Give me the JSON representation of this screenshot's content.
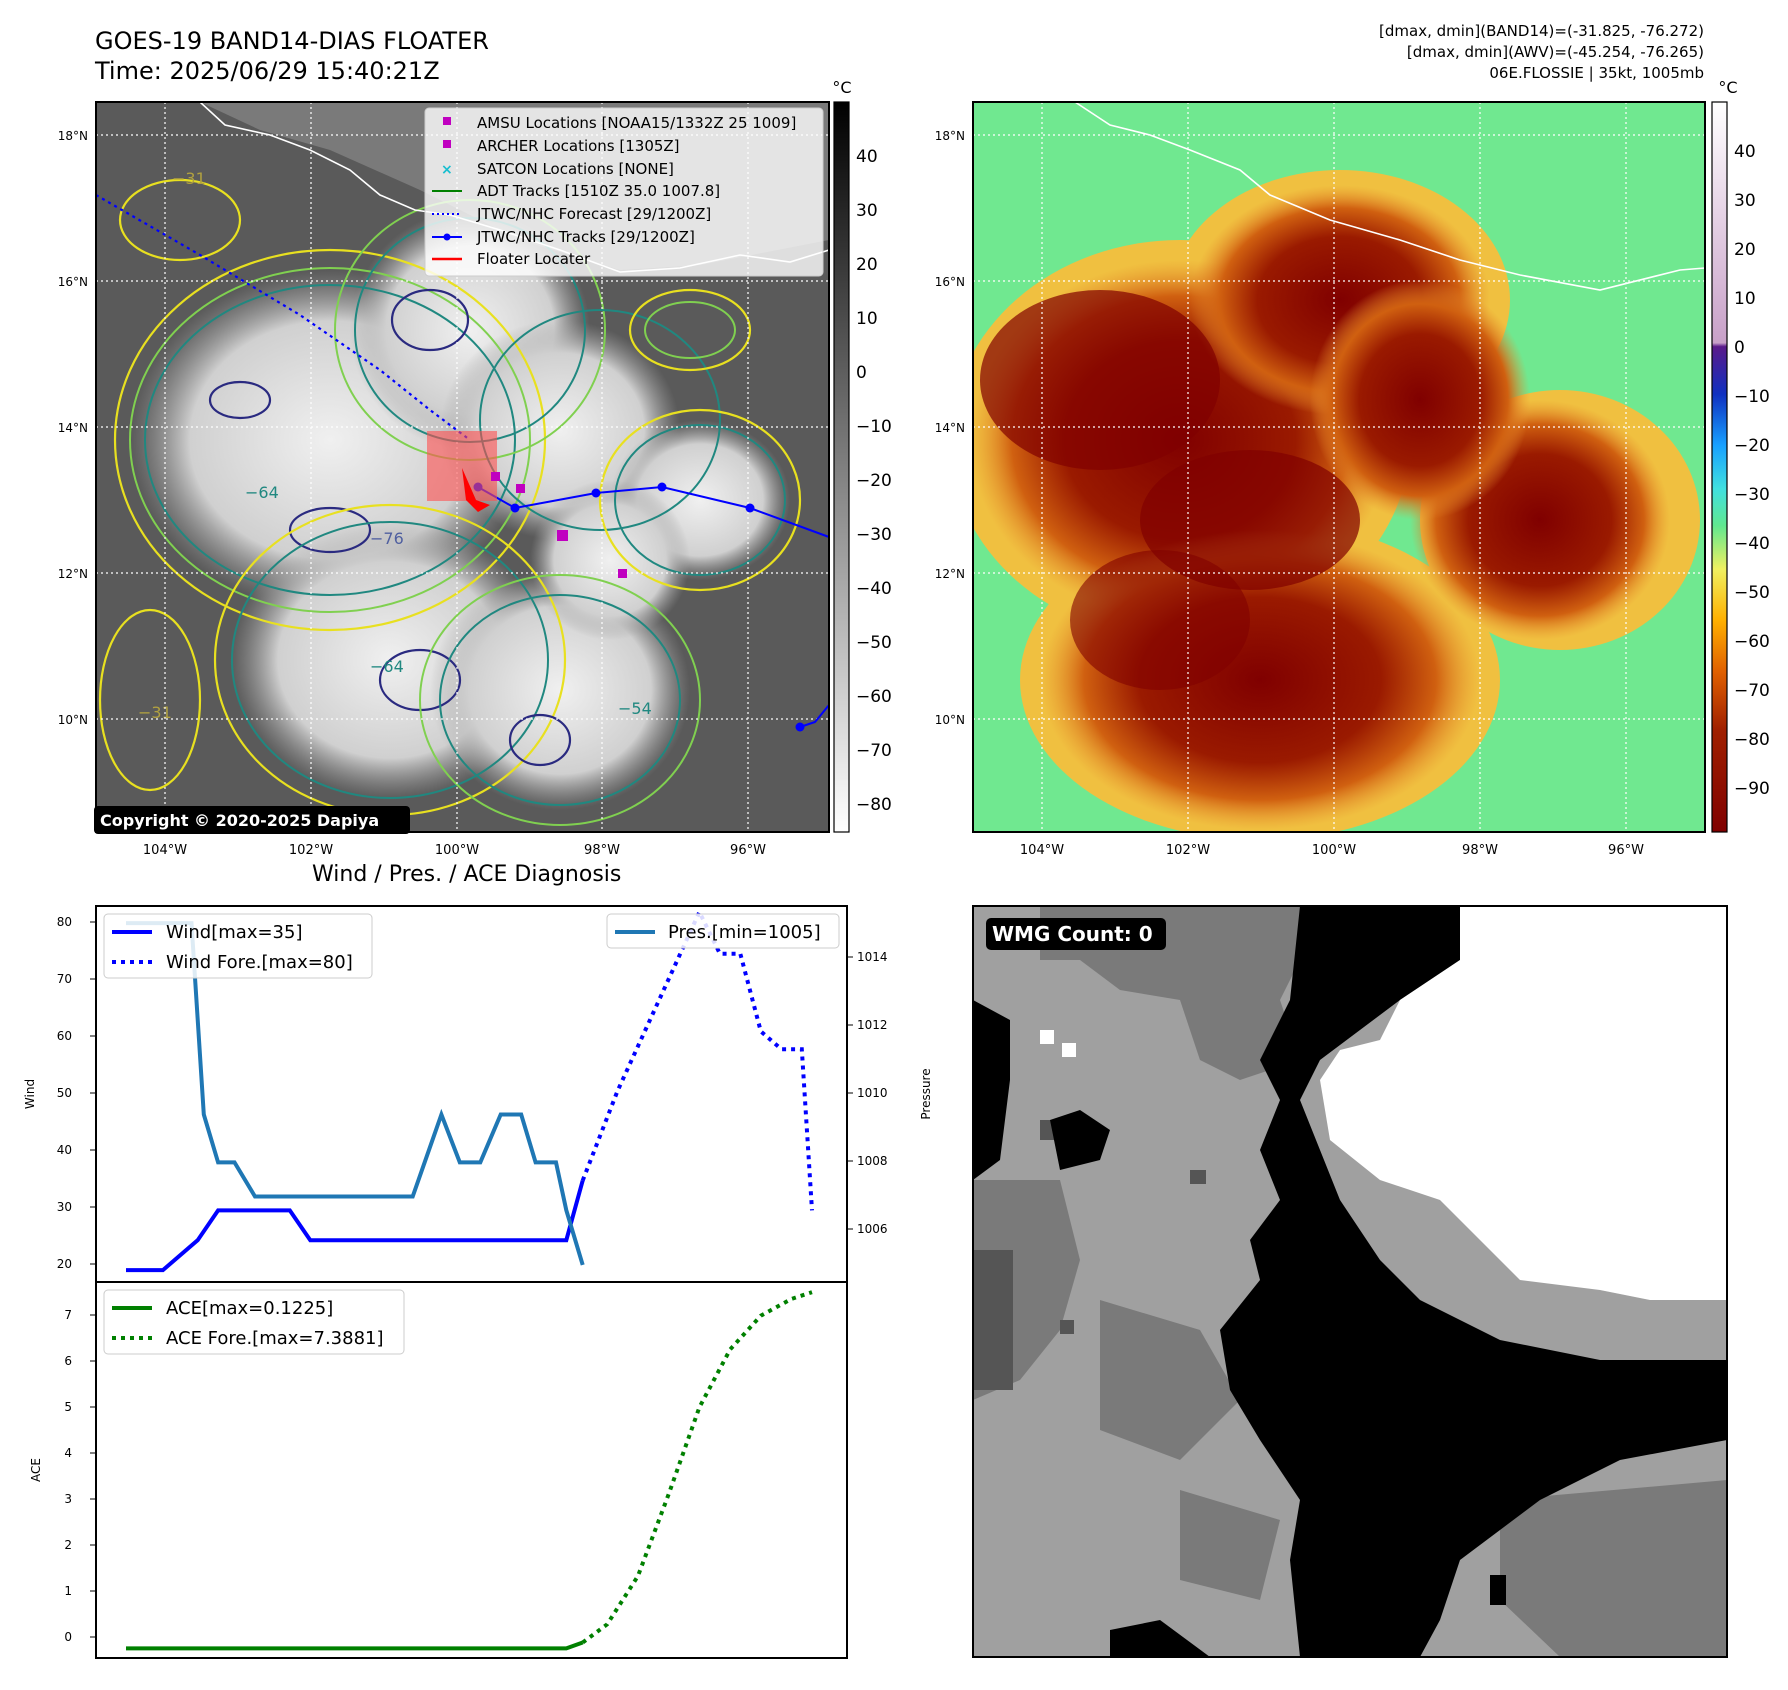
{
  "header": {
    "title_line1": "GOES-19 BAND14-DIAS FLOATER",
    "title_line2": "Time: 2025/06/29 15:40:21Z",
    "stat_band14": "[dmax, dmin](BAND14)=(-31.825, -76.272)",
    "stat_awv": "[dmax, dmin](AWV)=(-45.254, -76.265)",
    "storm_info": "06E.FLOSSIE | 35kt, 1005mb"
  },
  "map_axes": {
    "lat_labels": [
      "18°N",
      "16°N",
      "14°N",
      "12°N",
      "10°N"
    ],
    "lon_labels": [
      "104°W",
      "102°W",
      "100°W",
      "98°W",
      "96°W"
    ],
    "colorbar_unit": "°C",
    "colorbar_left_ticks": [
      "40",
      "30",
      "20",
      "10",
      "0",
      "−10",
      "−20",
      "−30",
      "−40",
      "−50",
      "−60",
      "−70",
      "−80"
    ],
    "colorbar_right_ticks": [
      "40",
      "30",
      "20",
      "10",
      "0",
      "−10",
      "−20",
      "−30",
      "−40",
      "−50",
      "−60",
      "−70",
      "−80",
      "−90"
    ],
    "contour_labels": [
      "−31",
      "−64",
      "−76",
      "−64",
      "−54",
      "−31"
    ]
  },
  "legend": [
    {
      "label": "AMSU Locations [NOAA15/1332Z 25 1009]",
      "symbol": "square",
      "color": "#c000c0"
    },
    {
      "label": "ARCHER Locations [1305Z]",
      "symbol": "square",
      "color": "#c000c0"
    },
    {
      "label": "SATCON Locations [NONE]",
      "symbol": "x",
      "color": "#17becf"
    },
    {
      "label": "ADT Tracks [1510Z 35.0 1007.8]",
      "symbol": "line",
      "color": "#008000"
    },
    {
      "label": "JTWC/NHC Forecast [29/1200Z]",
      "symbol": "dotted",
      "color": "#0000ff"
    },
    {
      "label": "JTWC/NHC Tracks [29/1200Z]",
      "symbol": "line-dot",
      "color": "#0000ff"
    },
    {
      "label": "Floater Locater",
      "symbol": "line",
      "color": "#ff0000"
    }
  ],
  "copyright": "Copyright © 2020-2025 Dapiya",
  "diagnosis": {
    "title": "Wind / Pres. / ACE Diagnosis",
    "wind_legend": "Wind[max=35]",
    "wind_fore_legend": "Wind Fore.[max=80]",
    "pres_legend": "Pres.[min=1005]",
    "ace_legend": "ACE[max=0.1225]",
    "ace_fore_legend": "ACE Fore.[max=7.3881]",
    "wind_ylabel": "Wind",
    "pres_ylabel": "Pressure",
    "ace_ylabel": "ACE",
    "wind_ticks": [
      "80",
      "70",
      "60",
      "50",
      "40",
      "30",
      "20"
    ],
    "pres_ticks": [
      "1014",
      "1012",
      "1010",
      "1008",
      "1006"
    ],
    "ace_ticks": [
      "7",
      "6",
      "5",
      "4",
      "3",
      "2",
      "1",
      "0"
    ]
  },
  "wmg": {
    "label": "WMG Count: 0"
  },
  "chart_data": [
    {
      "type": "line",
      "panel": "wind",
      "ylim": [
        18,
        81
      ],
      "xlim": [
        0,
        34
      ],
      "series": [
        {
          "name": "Wind[max=35]",
          "color": "#0000ff",
          "style": "solid",
          "x": [
            0,
            1,
            1.8,
            3.5,
            4.5,
            5.5,
            6.5,
            7.0,
            8.0,
            9.0,
            10.0,
            11.0,
            12.0,
            13.0,
            14.0,
            15.0,
            16.0,
            17.0,
            18.0,
            19.0,
            20.0,
            21.5,
            22.3
          ],
          "y": [
            20,
            20,
            20,
            25,
            30,
            30,
            30,
            30,
            30,
            25,
            25,
            25,
            25,
            25,
            25,
            25,
            25,
            25,
            25,
            25,
            25,
            25,
            35
          ]
        },
        {
          "name": "Wind Fore.[max=80]",
          "color": "#0000ff",
          "style": "dotted",
          "x": [
            22.3,
            24,
            26,
            28,
            29,
            30,
            31,
            32,
            33,
            33.5
          ],
          "y": [
            35,
            50,
            65,
            80,
            73,
            73,
            60,
            57,
            57,
            30
          ]
        }
      ]
    },
    {
      "type": "line",
      "panel": "pressure",
      "ylim": [
        1004.5,
        1015.5
      ],
      "series": [
        {
          "name": "Pres.[min=1005]",
          "color": "#1f77b4",
          "style": "solid",
          "x": [
            0,
            1,
            2,
            3.2,
            3.8,
            4.5,
            5.3,
            6.3,
            7.5,
            9,
            11,
            13,
            14,
            15.4,
            16.3,
            17.3,
            18.3,
            19.3,
            20.0,
            21.0,
            21.5,
            22.3
          ],
          "y": [
            1015,
            1015,
            1015,
            1015,
            1009.4,
            1008.0,
            1008.0,
            1007.0,
            1007.0,
            1007.0,
            1007.0,
            1007.0,
            1007.0,
            1009.4,
            1008.0,
            1008.0,
            1009.4,
            1009.4,
            1008.0,
            1008.0,
            1006.6,
            1005
          ]
        }
      ]
    },
    {
      "type": "line",
      "panel": "ace",
      "ylim": [
        -0.2,
        7.6
      ],
      "series": [
        {
          "name": "ACE[max=0.1225]",
          "color": "#008000",
          "style": "solid",
          "x": [
            0,
            5,
            10,
            15,
            20,
            21.5,
            22.3
          ],
          "y": [
            0,
            0,
            0,
            0,
            0,
            0,
            0.1225
          ]
        },
        {
          "name": "ACE Fore.[max=7.3881]",
          "color": "#008000",
          "style": "dotted",
          "x": [
            22.3,
            23.5,
            25,
            26.5,
            28,
            29.5,
            31,
            32.5,
            33.5
          ],
          "y": [
            0.1225,
            0.5,
            1.5,
            3.2,
            5.0,
            6.2,
            6.9,
            7.25,
            7.3881
          ]
        }
      ]
    }
  ]
}
